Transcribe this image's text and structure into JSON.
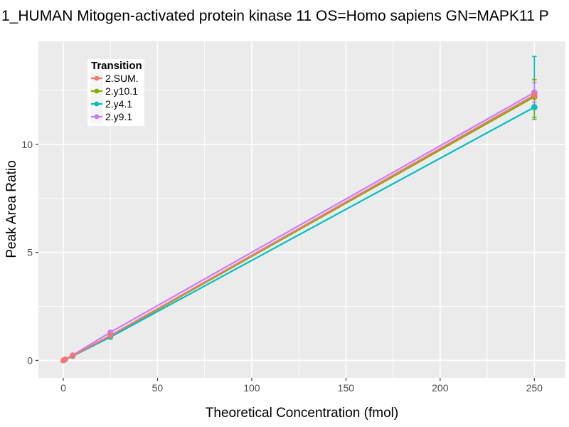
{
  "chart_data": {
    "type": "line",
    "title": "1_HUMAN Mitogen-activated protein kinase 11 OS=Homo sapiens GN=MAPK11 P",
    "xlabel": "Theoretical Concentration (fmol)",
    "ylabel": "Peak Area Ratio",
    "legend_title": "Transition",
    "legend_position": "top-left-inside",
    "grid": true,
    "panel_bg": "#EBEBEB",
    "grid_color": "#FFFFFF",
    "tick_color": "#333333",
    "tick_label_color": "#4D4D4D",
    "xlim": [
      -13.2,
      266.5
    ],
    "ylim": [
      -0.81,
      14.77
    ],
    "x_ticks": [
      0,
      50,
      100,
      150,
      200,
      250
    ],
    "y_ticks": [
      0,
      5,
      10
    ],
    "x_minor_ticks": [
      25,
      75,
      125,
      175,
      225
    ],
    "y_minor_ticks": [
      2.5,
      7.5,
      12.5
    ],
    "x": [
      0,
      1,
      5,
      25,
      250
    ],
    "series": [
      {
        "name": "2.SUM.",
        "color": "#F8766D",
        "values": [
          0.0,
          0.05,
          0.22,
          1.15,
          12.28
        ],
        "error_bars": []
      },
      {
        "name": "2.y10.1",
        "color": "#7CAE00",
        "values": [
          0.0,
          0.05,
          0.21,
          1.12,
          12.2
        ],
        "error_bars": [
          {
            "x": 250,
            "ymin": 11.15,
            "ymax": 13.0
          }
        ]
      },
      {
        "name": "2.y4.1",
        "color": "#00BFC4",
        "values": [
          0.0,
          0.04,
          0.2,
          1.08,
          11.72
        ],
        "error_bars": [
          {
            "x": 250,
            "ymin": 11.25,
            "ymax": 14.07
          }
        ]
      },
      {
        "name": "2.y9.1",
        "color": "#C77CFF",
        "values": [
          0.0,
          0.05,
          0.24,
          1.3,
          12.4
        ],
        "error_bars": [
          {
            "x": 250,
            "ymin": 11.95,
            "ymax": 12.85
          }
        ]
      }
    ],
    "errorbar_draw_order": [
      2,
      1,
      3
    ],
    "line_draw_order": [
      1,
      2,
      3,
      0
    ],
    "point_draw_order": [
      1,
      2,
      3,
      0
    ]
  }
}
